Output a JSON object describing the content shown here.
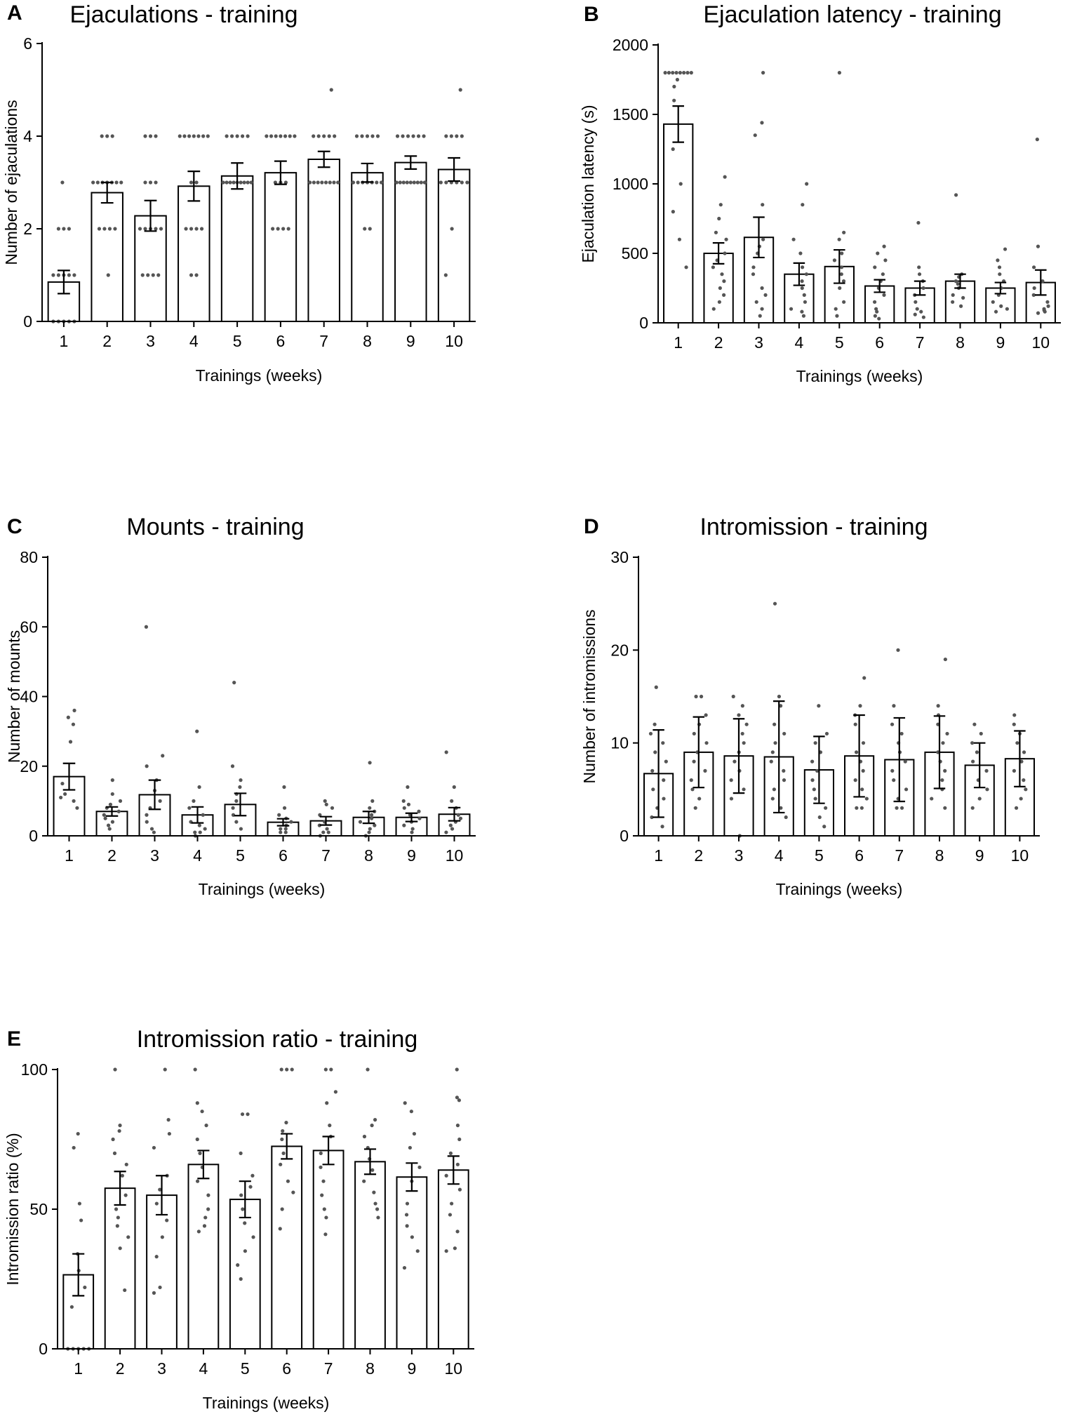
{
  "colors": {
    "bar_fill": "#ffffff",
    "stroke": "#000000",
    "dot": "#555555"
  },
  "chart_data": [
    {
      "panel": "A",
      "type": "bar",
      "title": "Ejaculations - training",
      "xlabel": "Trainings (weeks)",
      "ylabel": "Number of ejaculations",
      "categories": [
        "1",
        "2",
        "3",
        "4",
        "5",
        "6",
        "7",
        "8",
        "9",
        "10"
      ],
      "yticks": [
        "0",
        "2",
        "4",
        "6"
      ],
      "ylim": [
        0,
        6
      ],
      "values": [
        0.85,
        2.78,
        2.28,
        2.92,
        3.14,
        3.21,
        3.5,
        3.21,
        3.43,
        3.28
      ],
      "sem": [
        0.25,
        0.22,
        0.33,
        0.32,
        0.28,
        0.25,
        0.17,
        0.2,
        0.14,
        0.25
      ],
      "points": [
        [
          0,
          0,
          0,
          0,
          0,
          1,
          1,
          1,
          1,
          1,
          2,
          2,
          2,
          3
        ],
        [
          1,
          2,
          2,
          2,
          2,
          3,
          3,
          3,
          3,
          3,
          3,
          3,
          4,
          4,
          4
        ],
        [
          1,
          1,
          1,
          1,
          2,
          2,
          2,
          2,
          2,
          3,
          3,
          3,
          4,
          4,
          4
        ],
        [
          1,
          1,
          2,
          2,
          2,
          2,
          3,
          3,
          4,
          4,
          4,
          4,
          4,
          4,
          4
        ],
        [
          3,
          3,
          3,
          3,
          3,
          3,
          3,
          3,
          3,
          4,
          4,
          4,
          4,
          4
        ],
        [
          2,
          2,
          2,
          2,
          3,
          3,
          3,
          4,
          4,
          4,
          4,
          4,
          4,
          4
        ],
        [
          3,
          3,
          3,
          3,
          3,
          3,
          3,
          3,
          4,
          4,
          4,
          4,
          4,
          5
        ],
        [
          2,
          2,
          3,
          3,
          3,
          3,
          3,
          3,
          3,
          4,
          4,
          4,
          4,
          4
        ],
        [
          3,
          3,
          3,
          3,
          3,
          3,
          3,
          3,
          3,
          4,
          4,
          4,
          4,
          4,
          4
        ],
        [
          1,
          2,
          3,
          3,
          3,
          3,
          3,
          3,
          4,
          4,
          4,
          4,
          5
        ]
      ]
    },
    {
      "panel": "B",
      "type": "bar",
      "title": "Ejaculation latency - training",
      "xlabel": "Trainings (weeks)",
      "ylabel": "Ejaculation latency (s)",
      "categories": [
        "1",
        "2",
        "3",
        "4",
        "5",
        "6",
        "7",
        "8",
        "9",
        "10"
      ],
      "yticks": [
        "0",
        "500",
        "1000",
        "1500",
        "2000"
      ],
      "ylim": [
        0,
        2000
      ],
      "values": [
        1430,
        500,
        615,
        350,
        405,
        265,
        250,
        300,
        250,
        290
      ],
      "sem": [
        130,
        75,
        145,
        80,
        120,
        45,
        50,
        50,
        40,
        90
      ],
      "points": [
        [
          1800,
          1800,
          1800,
          1800,
          1800,
          1800,
          1800,
          1800,
          1750,
          1700,
          1600,
          1250,
          1000,
          800,
          600,
          400
        ],
        [
          1050,
          850,
          750,
          650,
          600,
          500,
          450,
          400,
          350,
          300,
          250,
          200,
          150,
          100
        ],
        [
          1800,
          1440,
          1350,
          850,
          600,
          550,
          500,
          400,
          350,
          250,
          200,
          150,
          100,
          50
        ],
        [
          1000,
          850,
          600,
          500,
          400,
          350,
          300,
          250,
          200,
          150,
          100,
          80,
          50
        ],
        [
          1800,
          650,
          600,
          500,
          450,
          400,
          350,
          300,
          250,
          150,
          100,
          50
        ],
        [
          550,
          500,
          450,
          400,
          350,
          300,
          250,
          200,
          150,
          100,
          80,
          50,
          30
        ],
        [
          720,
          400,
          350,
          300,
          250,
          200,
          150,
          100,
          80,
          60,
          40
        ],
        [
          920,
          350,
          330,
          300,
          280,
          250,
          200,
          180,
          150,
          120
        ],
        [
          530,
          450,
          400,
          350,
          300,
          250,
          200,
          150,
          120,
          100,
          80
        ],
        [
          1320,
          550,
          400,
          300,
          250,
          200,
          150,
          120,
          100,
          90,
          80,
          70
        ]
      ]
    },
    {
      "panel": "C",
      "type": "bar",
      "title": "Mounts - training",
      "xlabel": "Trainings (weeks)",
      "ylabel": "Number of mounts",
      "categories": [
        "1",
        "2",
        "3",
        "4",
        "5",
        "6",
        "7",
        "8",
        "9",
        "10"
      ],
      "yticks": [
        "0",
        "20",
        "40",
        "60",
        "80"
      ],
      "ylim": [
        0,
        80
      ],
      "values": [
        17,
        7,
        11.8,
        6,
        9,
        3.9,
        4.3,
        5.3,
        5.3,
        6.2
      ],
      "sem": [
        3.8,
        1.3,
        4.2,
        2.3,
        3.2,
        1.0,
        1.2,
        1.7,
        1.2,
        1.9
      ],
      "points": [
        [
          36,
          34,
          32,
          27,
          15,
          12,
          11,
          10,
          8
        ],
        [
          16,
          12,
          10,
          9,
          8,
          7,
          6,
          5,
          4,
          3,
          2
        ],
        [
          60,
          23,
          20,
          16,
          13,
          10,
          8,
          6,
          4,
          2,
          1
        ],
        [
          30,
          14,
          10,
          8,
          6,
          4,
          3,
          2,
          1,
          1,
          0
        ],
        [
          44,
          20,
          16,
          14,
          12,
          10,
          8,
          6,
          4,
          2
        ],
        [
          14,
          8,
          6,
          5,
          4,
          3,
          2,
          2,
          1,
          1
        ],
        [
          10,
          9,
          8,
          6,
          4,
          3,
          2,
          1,
          1,
          0
        ],
        [
          21,
          10,
          8,
          7,
          6,
          5,
          4,
          3,
          2,
          1,
          0
        ],
        [
          14,
          10,
          9,
          8,
          7,
          6,
          5,
          4,
          3,
          2,
          1
        ],
        [
          24,
          14,
          10,
          8,
          6,
          5,
          4,
          3,
          2,
          1
        ]
      ]
    },
    {
      "panel": "D",
      "type": "bar",
      "title": "Intromission - training",
      "xlabel": "Trainings (weeks)",
      "ylabel": "Number of intromissions",
      "categories": [
        "1",
        "2",
        "3",
        "4",
        "5",
        "6",
        "7",
        "8",
        "9",
        "10"
      ],
      "yticks": [
        "0",
        "10",
        "20",
        "30"
      ],
      "ylim": [
        0,
        30
      ],
      "values": [
        6.7,
        9.0,
        8.6,
        8.5,
        7.1,
        8.6,
        8.2,
        9.0,
        7.6,
        8.3
      ],
      "sem": [
        4.7,
        3.8,
        4.0,
        6.0,
        3.6,
        4.4,
        4.5,
        3.9,
        2.4,
        3.0
      ],
      "points": [
        [
          16,
          12,
          11,
          10,
          9,
          8,
          7,
          6,
          5,
          4,
          3,
          2,
          1
        ],
        [
          15,
          15,
          13,
          12,
          11,
          10,
          9,
          8,
          7,
          6,
          5,
          4,
          3
        ],
        [
          15,
          14,
          13,
          12,
          11,
          10,
          9,
          8,
          7,
          6,
          5,
          4,
          0
        ],
        [
          25,
          15,
          14,
          12,
          11,
          10,
          9,
          8,
          7,
          6,
          5,
          4,
          3,
          2
        ],
        [
          14,
          11,
          10,
          9,
          8,
          7,
          6,
          5,
          4,
          3,
          2,
          1
        ],
        [
          17,
          14,
          13,
          12,
          10,
          9,
          8,
          7,
          6,
          5,
          4,
          3,
          3
        ],
        [
          20,
          14,
          12,
          11,
          10,
          9,
          8,
          7,
          6,
          5,
          4,
          3,
          3
        ],
        [
          19,
          14,
          13,
          12,
          11,
          10,
          9,
          8,
          7,
          6,
          5,
          4,
          3
        ],
        [
          12,
          11,
          10,
          9,
          8,
          7,
          6,
          5,
          4,
          3
        ],
        [
          13,
          12,
          11,
          10,
          9,
          8,
          7,
          6,
          5,
          4,
          3
        ]
      ]
    },
    {
      "panel": "E",
      "type": "bar",
      "title": "Intromission ratio - training",
      "xlabel": "Trainings (weeks)",
      "ylabel": "Intromission ratio  (%)",
      "categories": [
        "1",
        "2",
        "3",
        "4",
        "5",
        "6",
        "7",
        "8",
        "9",
        "10"
      ],
      "yticks": [
        "0",
        "50",
        "100"
      ],
      "ylim": [
        0,
        100
      ],
      "values": [
        26.5,
        57.5,
        55,
        66,
        53.5,
        72.5,
        71,
        67,
        61.5,
        64
      ],
      "sem": [
        7.5,
        6,
        7,
        5,
        6.5,
        4.5,
        5,
        4.5,
        5,
        5
      ],
      "points": [
        [
          77,
          72,
          52,
          46,
          34,
          28,
          22,
          15,
          0,
          0,
          0,
          0,
          0
        ],
        [
          100,
          80,
          78,
          75,
          70,
          66,
          62,
          55,
          50,
          47,
          44,
          40,
          36,
          21
        ],
        [
          100,
          82,
          77,
          72,
          62,
          57,
          52,
          46,
          40,
          33,
          22,
          20
        ],
        [
          100,
          88,
          85,
          80,
          75,
          70,
          65,
          60,
          55,
          50,
          47,
          44,
          42
        ],
        [
          84,
          84,
          70,
          62,
          58,
          55,
          50,
          45,
          40,
          35,
          30,
          25
        ],
        [
          100,
          100,
          100,
          81,
          78,
          75,
          70,
          66,
          60,
          56,
          50,
          43
        ],
        [
          100,
          100,
          92,
          88,
          80,
          76,
          70,
          65,
          60,
          55,
          50,
          47,
          41
        ],
        [
          100,
          82,
          80,
          76,
          72,
          68,
          64,
          60,
          56,
          52,
          50,
          47
        ],
        [
          88,
          85,
          77,
          72,
          65,
          60,
          52,
          48,
          44,
          40,
          35,
          29
        ],
        [
          100,
          90,
          89,
          80,
          75,
          70,
          66,
          62,
          57,
          52,
          48,
          42,
          36,
          35
        ]
      ]
    }
  ]
}
